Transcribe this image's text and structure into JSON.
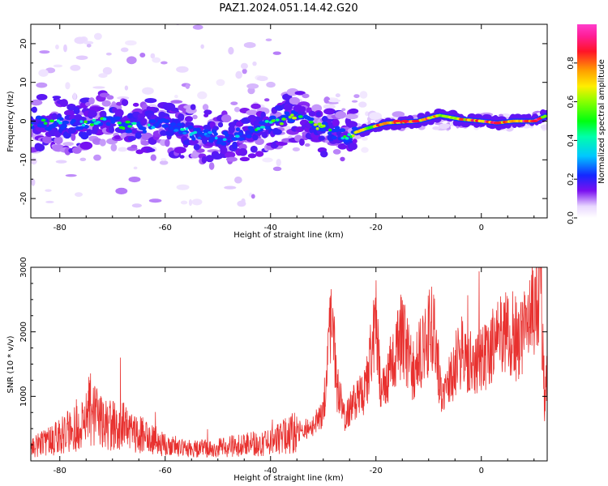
{
  "figure": {
    "title": "PAZ1.2024.051.14.42.G20"
  },
  "chart_data": [
    {
      "type": "heatmap",
      "xlabel": "Height of straight line (km)",
      "ylabel": "Frequency (Hz)",
      "xlim": [
        -85.5,
        12.5
      ],
      "ylim": [
        -25,
        25
      ],
      "x_ticks": [
        -80,
        -60,
        -40,
        -20,
        0
      ],
      "y_ticks": [
        -20,
        -10,
        0,
        10,
        20
      ],
      "colormap": "gist_ncar-like rainbow (white → purple → blue → cyan → green → yellow → orange → red → magenta)",
      "colorbar": {
        "label": "Normalized spectral amplitude",
        "range": [
          0.0,
          1.0
        ],
        "ticks": [
          0.0,
          0.2,
          0.4,
          0.6,
          0.8
        ]
      },
      "ridge": [
        {
          "x": -84,
          "f": -0.5,
          "amp": 0.45
        },
        {
          "x": -78,
          "f": -1.0,
          "amp": 0.45
        },
        {
          "x": -72,
          "f": 0.5,
          "amp": 0.5
        },
        {
          "x": -66,
          "f": -1.5,
          "amp": 0.45
        },
        {
          "x": -60,
          "f": -1.0,
          "amp": 0.4
        },
        {
          "x": -54,
          "f": -3.5,
          "amp": 0.35
        },
        {
          "x": -48,
          "f": -4.5,
          "amp": 0.3
        },
        {
          "x": -42,
          "f": -1.5,
          "amp": 0.45
        },
        {
          "x": -36,
          "f": 1.0,
          "amp": 0.6
        },
        {
          "x": -30,
          "f": -1.5,
          "amp": 0.55
        },
        {
          "x": -26,
          "f": -4.0,
          "amp": 0.45
        },
        {
          "x": -22,
          "f": -2.0,
          "amp": 0.7
        },
        {
          "x": -18,
          "f": -0.5,
          "amp": 0.8
        },
        {
          "x": -12,
          "f": 0.0,
          "amp": 0.9
        },
        {
          "x": -8,
          "f": 1.5,
          "amp": 0.7
        },
        {
          "x": -4,
          "f": 0.5,
          "amp": 0.75
        },
        {
          "x": 0,
          "f": 0.0,
          "amp": 0.85
        },
        {
          "x": 3,
          "f": -0.5,
          "amp": 0.95
        },
        {
          "x": 6,
          "f": 0.0,
          "amp": 0.8
        },
        {
          "x": 10,
          "f": 0.0,
          "amp": 0.9
        },
        {
          "x": 12.5,
          "f": 1.5,
          "amp": 0.7
        }
      ]
    },
    {
      "type": "line",
      "xlabel": "Height of straight line (km)",
      "ylabel": "SNR (10 * v/v)",
      "xlim": [
        -85.5,
        12.5
      ],
      "ylim": [
        0,
        3000
      ],
      "x_ticks": [
        -80,
        -60,
        -40,
        -20,
        0
      ],
      "y_ticks": [
        1000,
        2000,
        3000
      ],
      "series": [
        {
          "color": "#e8312f",
          "envelope": [
            {
              "x": -85.5,
              "y": 200
            },
            {
              "x": -80,
              "y": 380
            },
            {
              "x": -76,
              "y": 600
            },
            {
              "x": -74,
              "y": 800
            },
            {
              "x": -72,
              "y": 550
            },
            {
              "x": -68,
              "y": 520
            },
            {
              "x": -64,
              "y": 380
            },
            {
              "x": -60,
              "y": 250
            },
            {
              "x": -55,
              "y": 180
            },
            {
              "x": -50,
              "y": 200
            },
            {
              "x": -45,
              "y": 250
            },
            {
              "x": -40,
              "y": 300
            },
            {
              "x": -36,
              "y": 420
            },
            {
              "x": -32,
              "y": 550
            },
            {
              "x": -30,
              "y": 700
            },
            {
              "x": -28.5,
              "y": 2400
            },
            {
              "x": -27.5,
              "y": 1200
            },
            {
              "x": -26,
              "y": 700
            },
            {
              "x": -24,
              "y": 900
            },
            {
              "x": -22,
              "y": 1100
            },
            {
              "x": -20,
              "y": 2100
            },
            {
              "x": -19,
              "y": 1000
            },
            {
              "x": -17,
              "y": 1500
            },
            {
              "x": -15,
              "y": 2000
            },
            {
              "x": -13,
              "y": 1400
            },
            {
              "x": -11,
              "y": 1800
            },
            {
              "x": -9,
              "y": 2200
            },
            {
              "x": -7.5,
              "y": 900
            },
            {
              "x": -6,
              "y": 1300
            },
            {
              "x": -4,
              "y": 1700
            },
            {
              "x": -1,
              "y": 1500
            },
            {
              "x": 2,
              "y": 1750
            },
            {
              "x": 5,
              "y": 2050
            },
            {
              "x": 7,
              "y": 1850
            },
            {
              "x": 9,
              "y": 2050
            },
            {
              "x": 10.5,
              "y": 2600
            },
            {
              "x": 11,
              "y": 2900
            },
            {
              "x": 11.5,
              "y": 2200
            },
            {
              "x": 12,
              "y": 900
            },
            {
              "x": 12.5,
              "y": 1300
            }
          ],
          "spikes": [
            {
              "x": -68.5,
              "y": 1600
            },
            {
              "x": -74.5,
              "y": 1300
            },
            {
              "x": -20.5,
              "y": 2250
            },
            {
              "x": -28.6,
              "y": 2560
            },
            {
              "x": 10.8,
              "y": 3000
            }
          ]
        }
      ]
    }
  ]
}
